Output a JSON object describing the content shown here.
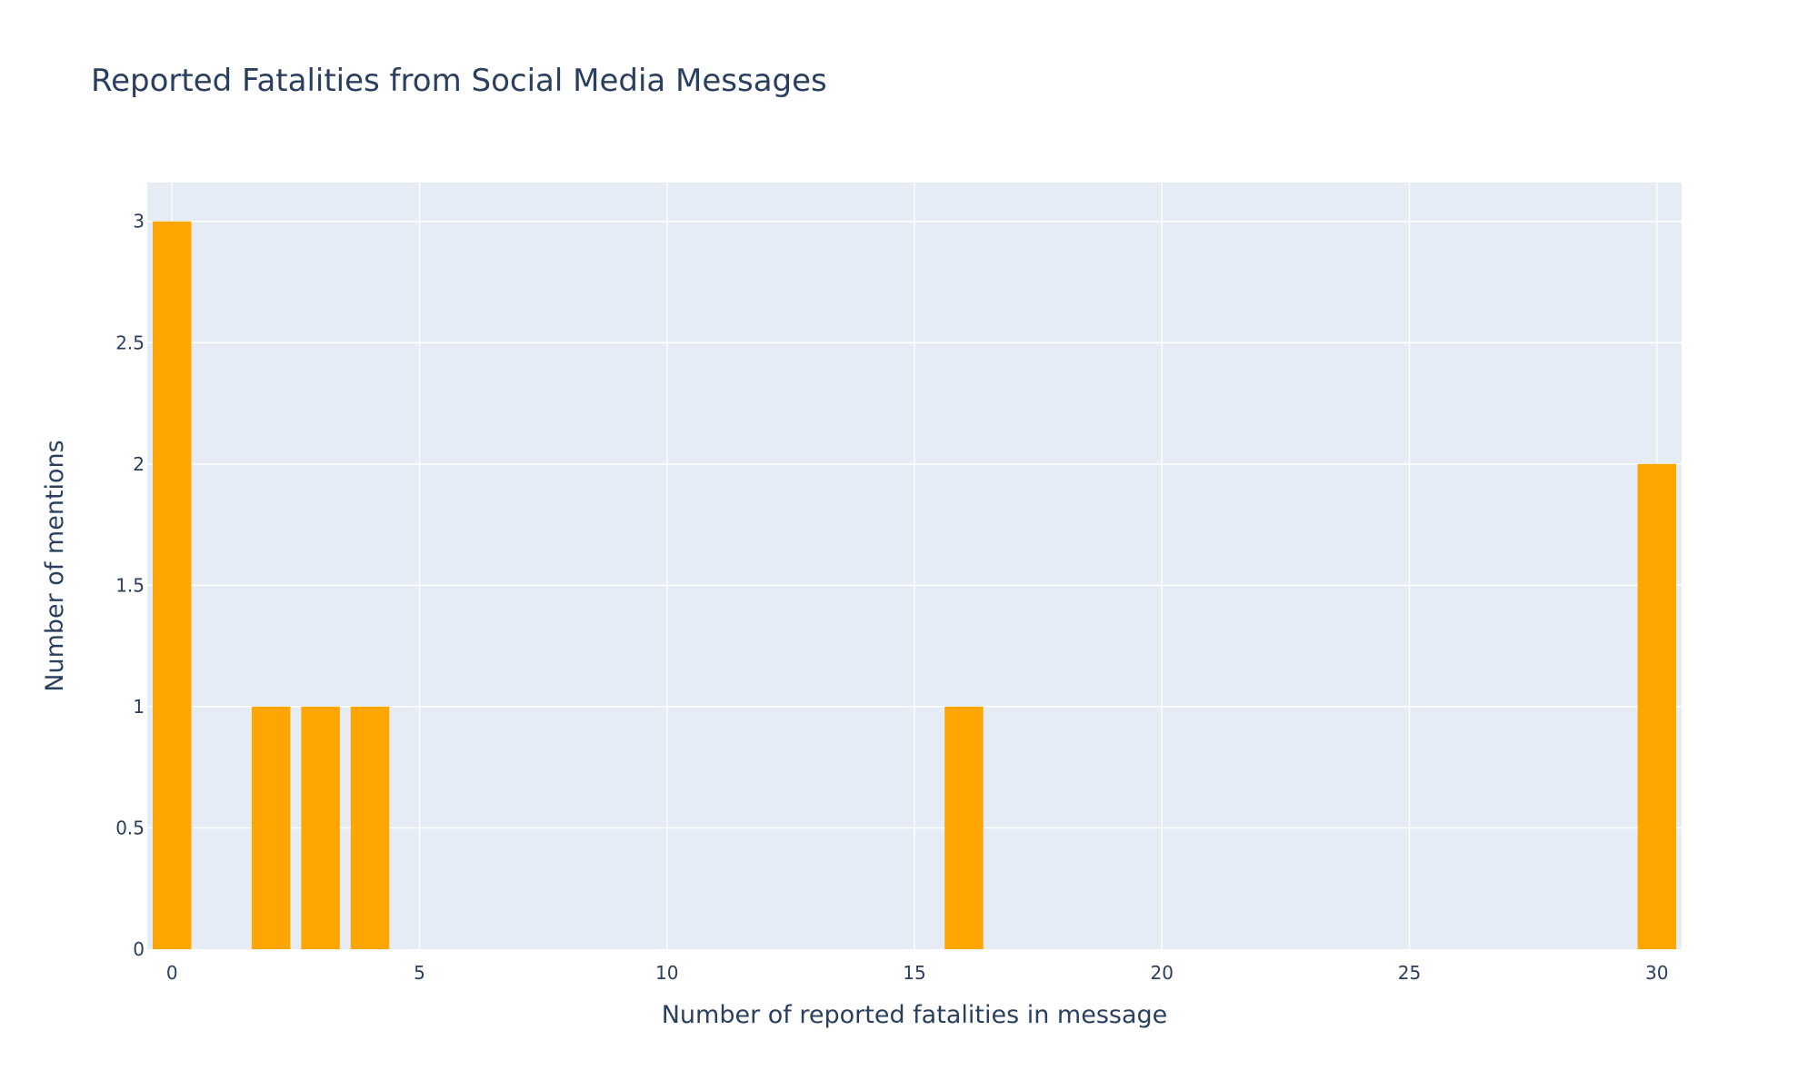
{
  "chart_data": {
    "type": "bar",
    "title": "Reported Fatalities from Social Media Messages",
    "xlabel": "Number of reported fatalities in message",
    "ylabel": "Number of mentions",
    "x": [
      0,
      2,
      3,
      4,
      16,
      30
    ],
    "values": [
      3,
      1,
      1,
      1,
      1,
      2
    ],
    "xlim": [
      -0.5,
      30.5
    ],
    "ylim": [
      0,
      3.16
    ],
    "x_ticks": [
      0,
      5,
      10,
      15,
      20,
      25,
      30
    ],
    "x_tick_labels": [
      "0",
      "5",
      "10",
      "15",
      "20",
      "25",
      "30"
    ],
    "y_ticks": [
      0,
      0.5,
      1,
      1.5,
      2,
      2.5,
      3
    ],
    "y_tick_labels": [
      "0",
      "0.5",
      "1",
      "1.5",
      "2",
      "2.5",
      "3"
    ],
    "bar_color": "#FFA500",
    "plot_background": "#E5ECF6",
    "grid": true,
    "legend": false
  }
}
